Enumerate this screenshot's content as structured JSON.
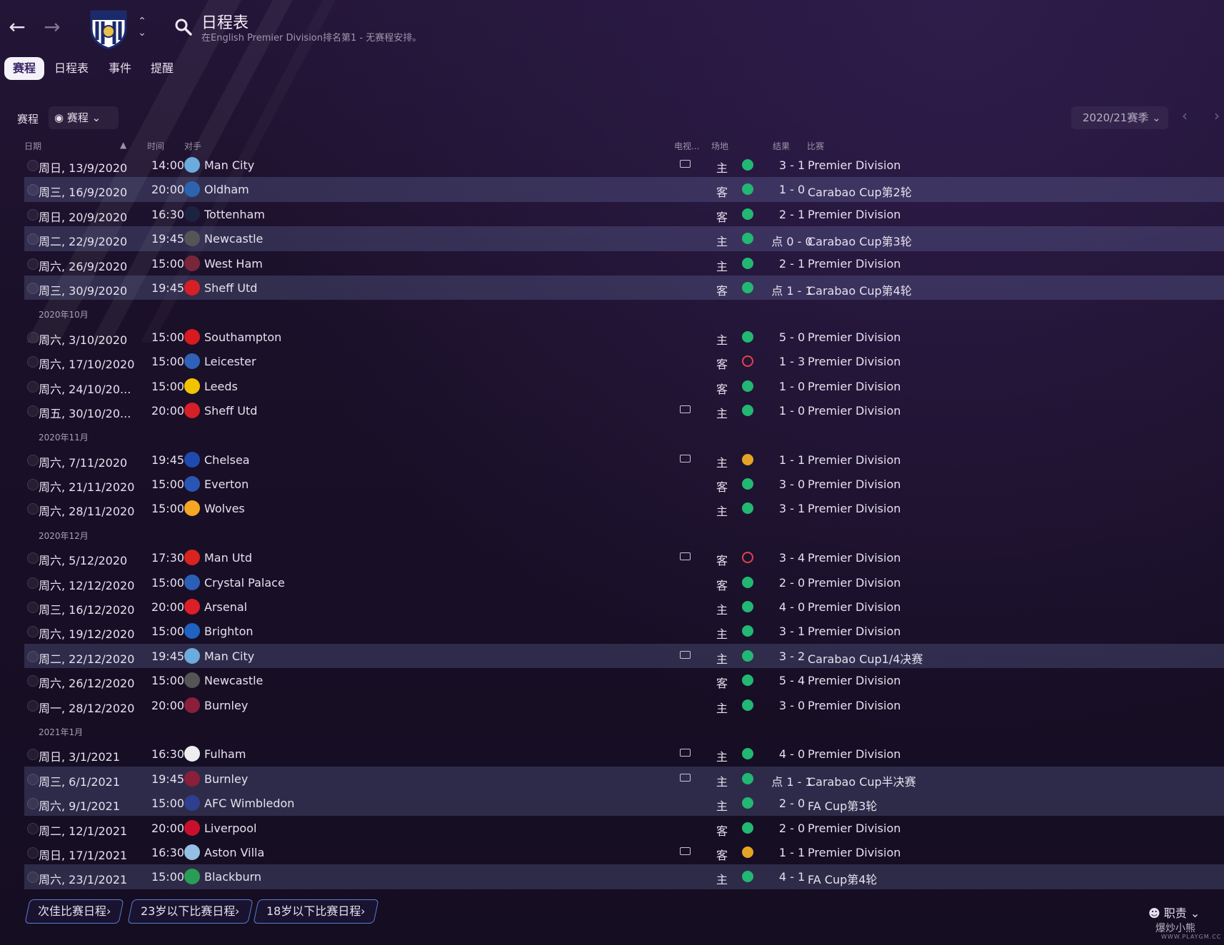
{
  "header": {
    "title": "日程表",
    "subtitle": "在English Premier Division排名第1 - 无赛程安排。"
  },
  "tabs": [
    "赛程",
    "日程表",
    "事件",
    "提醒"
  ],
  "filter": {
    "label": "赛程",
    "dropdown": "赛程"
  },
  "season": {
    "dropdown": "2020/21赛季"
  },
  "columns": {
    "date": "日期",
    "time": "时间",
    "opponent": "对手",
    "tv": "电视...",
    "venue": "场地",
    "result": "结果",
    "competition": "比赛"
  },
  "rows": [
    {
      "type": "match",
      "date": "周日, 13/9/2020",
      "time": "14:00",
      "opponent": "Man City",
      "crest": "#6cabdd",
      "tv": true,
      "venue": "主",
      "result": "W",
      "score": "3 - 1",
      "competition": "Premier Division",
      "highlight": false
    },
    {
      "type": "match",
      "date": "周三, 16/9/2020",
      "time": "20:00",
      "opponent": "Oldham",
      "crest": "#2d64b0",
      "tv": false,
      "venue": "客",
      "result": "W",
      "score": "1 - 0",
      "competition": "Carabao Cup第2轮",
      "highlight": true
    },
    {
      "type": "match",
      "date": "周日, 20/9/2020",
      "time": "16:30",
      "opponent": "Tottenham",
      "crest": "#1b2340",
      "tv": false,
      "venue": "客",
      "result": "W",
      "score": "2 - 1",
      "competition": "Premier Division",
      "highlight": false
    },
    {
      "type": "match",
      "date": "周二, 22/9/2020",
      "time": "19:45",
      "opponent": "Newcastle",
      "crest": "#555555",
      "tv": false,
      "venue": "主",
      "result": "W",
      "score": "点 0 - 0",
      "competition": "Carabao Cup第3轮",
      "highlight": true
    },
    {
      "type": "match",
      "date": "周六, 26/9/2020",
      "time": "15:00",
      "opponent": "West Ham",
      "crest": "#7a263a",
      "tv": false,
      "venue": "主",
      "result": "W",
      "score": "2 - 1",
      "competition": "Premier Division",
      "highlight": false
    },
    {
      "type": "match",
      "date": "周三, 30/9/2020",
      "time": "19:45",
      "opponent": "Sheff Utd",
      "crest": "#d61f26",
      "tv": false,
      "venue": "客",
      "result": "W",
      "score": "点 1 - 1",
      "competition": "Carabao Cup第4轮",
      "highlight": true
    },
    {
      "type": "month",
      "label": "2020年10月"
    },
    {
      "type": "match",
      "date": "周六, 3/10/2020",
      "time": "15:00",
      "opponent": "Southampton",
      "crest": "#d71920",
      "tv": false,
      "venue": "主",
      "result": "W",
      "score": "5 - 0",
      "competition": "Premier Division",
      "highlight": false
    },
    {
      "type": "match",
      "date": "周六, 17/10/2020",
      "time": "15:00",
      "opponent": "Leicester",
      "crest": "#2f62b6",
      "tv": false,
      "venue": "客",
      "result": "L",
      "score": "1 - 3",
      "competition": "Premier Division",
      "highlight": false
    },
    {
      "type": "match",
      "date": "周六, 24/10/20...",
      "time": "15:00",
      "opponent": "Leeds",
      "crest": "#f2c300",
      "tv": false,
      "venue": "客",
      "result": "W",
      "score": "1 - 0",
      "competition": "Premier Division",
      "highlight": false
    },
    {
      "type": "match",
      "date": "周五, 30/10/20...",
      "time": "20:00",
      "opponent": "Sheff Utd",
      "crest": "#d61f26",
      "tv": true,
      "venue": "主",
      "result": "W",
      "score": "1 - 0",
      "competition": "Premier Division",
      "highlight": false
    },
    {
      "type": "month",
      "label": "2020年11月"
    },
    {
      "type": "match",
      "date": "周六, 7/11/2020",
      "time": "19:45",
      "opponent": "Chelsea",
      "crest": "#1f4bb0",
      "tv": true,
      "venue": "主",
      "result": "D",
      "score": "1 - 1",
      "competition": "Premier Division",
      "highlight": false
    },
    {
      "type": "match",
      "date": "周六, 21/11/2020",
      "time": "15:00",
      "opponent": "Everton",
      "crest": "#2a55b4",
      "tv": false,
      "venue": "客",
      "result": "W",
      "score": "3 - 0",
      "competition": "Premier Division",
      "highlight": false
    },
    {
      "type": "match",
      "date": "周六, 28/11/2020",
      "time": "15:00",
      "opponent": "Wolves",
      "crest": "#f5a623",
      "tv": false,
      "venue": "主",
      "result": "W",
      "score": "3 - 1",
      "competition": "Premier Division",
      "highlight": false
    },
    {
      "type": "month",
      "label": "2020年12月"
    },
    {
      "type": "match",
      "date": "周六, 5/12/2020",
      "time": "17:30",
      "opponent": "Man Utd",
      "crest": "#d8231f",
      "tv": true,
      "venue": "客",
      "result": "L",
      "score": "3 - 4",
      "competition": "Premier Division",
      "highlight": false
    },
    {
      "type": "match",
      "date": "周六, 12/12/2020",
      "time": "15:00",
      "opponent": "Crystal Palace",
      "crest": "#2a5fb8",
      "tv": false,
      "venue": "客",
      "result": "W",
      "score": "2 - 0",
      "competition": "Premier Division",
      "highlight": false
    },
    {
      "type": "match",
      "date": "周三, 16/12/2020",
      "time": "20:00",
      "opponent": "Arsenal",
      "crest": "#dc1f26",
      "tv": false,
      "venue": "主",
      "result": "W",
      "score": "4 - 0",
      "competition": "Premier Division",
      "highlight": false
    },
    {
      "type": "match",
      "date": "周六, 19/12/2020",
      "time": "15:00",
      "opponent": "Brighton",
      "crest": "#1f62c2",
      "tv": false,
      "venue": "主",
      "result": "W",
      "score": "3 - 1",
      "competition": "Premier Division",
      "highlight": false
    },
    {
      "type": "match",
      "date": "周二, 22/12/2020",
      "time": "19:45",
      "opponent": "Man City",
      "crest": "#6cabdd",
      "tv": true,
      "venue": "主",
      "result": "W",
      "score": "3 - 2",
      "competition": "Carabao Cup1/4决赛",
      "highlight": true
    },
    {
      "type": "match",
      "date": "周六, 26/12/2020",
      "time": "15:00",
      "opponent": "Newcastle",
      "crest": "#555555",
      "tv": false,
      "venue": "客",
      "result": "W",
      "score": "5 - 4",
      "competition": "Premier Division",
      "highlight": false
    },
    {
      "type": "match",
      "date": "周一, 28/12/2020",
      "time": "20:00",
      "opponent": "Burnley",
      "crest": "#8a1f3a",
      "tv": false,
      "venue": "主",
      "result": "W",
      "score": "3 - 0",
      "competition": "Premier Division",
      "highlight": false
    },
    {
      "type": "month",
      "label": "2021年1月"
    },
    {
      "type": "match",
      "date": "周日, 3/1/2021",
      "time": "16:30",
      "opponent": "Fulham",
      "crest": "#eeeeee",
      "tv": true,
      "venue": "主",
      "result": "W",
      "score": "4 - 0",
      "competition": "Premier Division",
      "highlight": false
    },
    {
      "type": "match",
      "date": "周三, 6/1/2021",
      "time": "19:45",
      "opponent": "Burnley",
      "crest": "#8a1f3a",
      "tv": true,
      "venue": "主",
      "result": "W",
      "score": "点 1 - 1",
      "competition": "Carabao Cup半决赛",
      "highlight": true
    },
    {
      "type": "match",
      "date": "周六, 9/1/2021",
      "time": "15:00",
      "opponent": "AFC Wimbledon",
      "crest": "#2f3f8f",
      "tv": false,
      "venue": "主",
      "result": "W",
      "score": "2 - 0",
      "competition": "FA Cup第3轮",
      "highlight": true
    },
    {
      "type": "match",
      "date": "周二, 12/1/2021",
      "time": "20:00",
      "opponent": "Liverpool",
      "crest": "#c8102e",
      "tv": false,
      "venue": "客",
      "result": "W",
      "score": "2 - 0",
      "competition": "Premier Division",
      "highlight": false
    },
    {
      "type": "match",
      "date": "周日, 17/1/2021",
      "time": "16:30",
      "opponent": "Aston Villa",
      "crest": "#95bfe5",
      "tv": true,
      "venue": "客",
      "result": "D",
      "score": "1 - 1",
      "competition": "Premier Division",
      "highlight": false
    },
    {
      "type": "match",
      "date": "周六, 23/1/2021",
      "time": "15:00",
      "opponent": "Blackburn",
      "crest": "#2a9d55",
      "tv": false,
      "venue": "主",
      "result": "W",
      "score": "4 - 1",
      "competition": "FA Cup第4轮",
      "highlight": true
    }
  ],
  "bottom_buttons": [
    "次佳比赛日程",
    "23岁以下比赛日程",
    "18岁以下比赛日程"
  ],
  "duty": "职责",
  "watermark": {
    "text": "爆炒小熊",
    "sub": "WWW.PLAYGM.CC"
  },
  "colors": {
    "win": "#22b773",
    "loss": "#e2434c",
    "draw": "#e5a524",
    "accent": "#5b7dd0"
  }
}
